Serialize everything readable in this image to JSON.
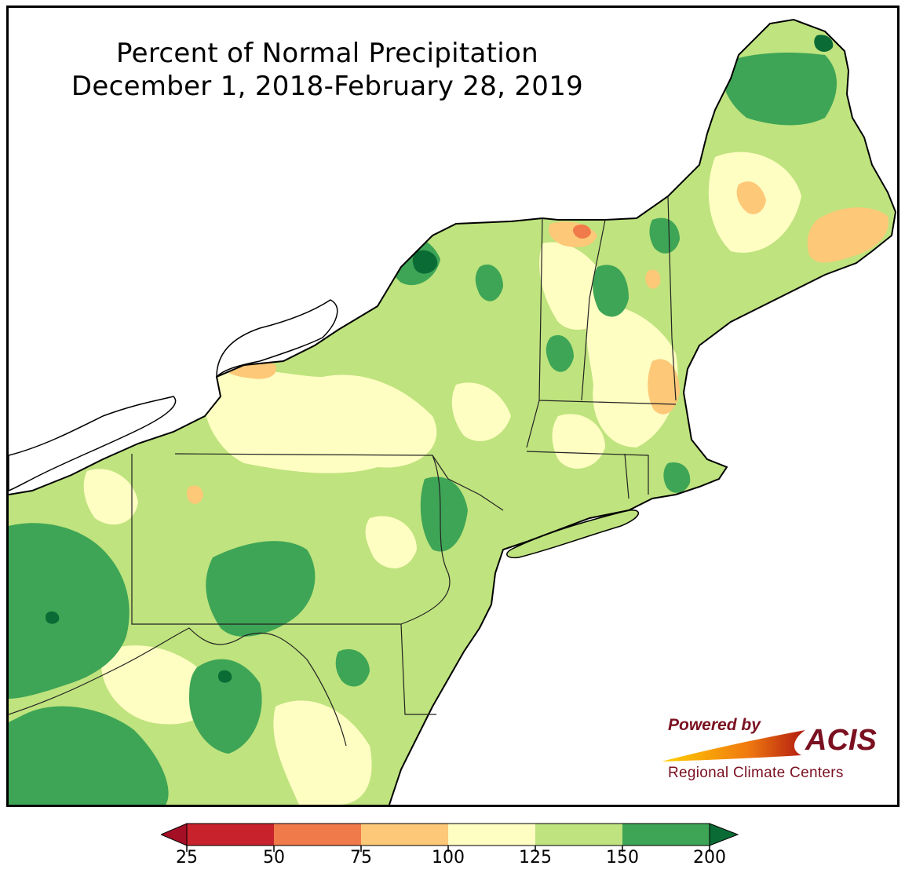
{
  "title": {
    "line1": "Percent of Normal Precipitation",
    "line2": "December 1, 2018-February 28, 2019"
  },
  "legend": {
    "ticks": [
      "25",
      "50",
      "75",
      "100",
      "125",
      "150",
      "200"
    ],
    "colors": {
      "lt25": "#a50f26",
      "25-50": "#c8232d",
      "50-75": "#f07a4a",
      "75-100": "#fdc878",
      "100-125": "#fefdc2",
      "125-150": "#bfe37e",
      "150-200": "#3ea556",
      "gt200": "#0b6b35"
    }
  },
  "logo": {
    "powered": "Powered by",
    "brand": "ACIS",
    "subtitle": "Regional Climate Centers"
  }
}
